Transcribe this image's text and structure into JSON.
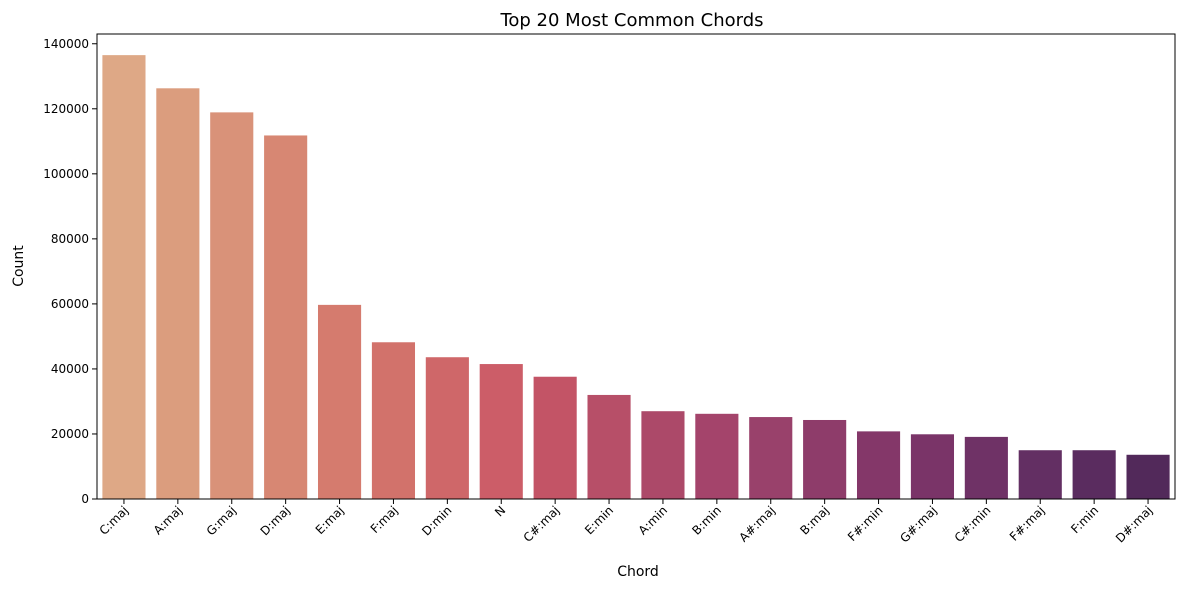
{
  "chart_data": {
    "type": "bar",
    "title": "Top 20 Most Common Chords",
    "xlabel": "Chord",
    "ylabel": "Count",
    "ylim": [
      0,
      143000
    ],
    "yticks": [
      0,
      20000,
      40000,
      60000,
      80000,
      100000,
      120000,
      140000
    ],
    "grid": false,
    "legend": "none",
    "categories": [
      "C:maj",
      "A:maj",
      "G:maj",
      "D:maj",
      "E:maj",
      "F:maj",
      "D:min",
      "N",
      "C#:maj",
      "E:min",
      "A:min",
      "B:min",
      "A#:maj",
      "B:maj",
      "F#:min",
      "G#:maj",
      "C#:min",
      "F#:maj",
      "F:min",
      "D#:maj"
    ],
    "values": [
      136500,
      126300,
      118900,
      111800,
      59700,
      48200,
      43600,
      41500,
      37600,
      32000,
      27000,
      26200,
      25200,
      24300,
      20800,
      19900,
      19100,
      15000,
      15000,
      13600
    ],
    "colors": [
      "#dea886",
      "#db9d7e",
      "#d99279",
      "#d78773",
      "#d57b6e",
      "#d2726b",
      "#cf6769",
      "#cc5d68",
      "#c35466",
      "#b74f68",
      "#ac4969",
      "#a4446b",
      "#99416b",
      "#8e3c6a",
      "#843769",
      "#7a3468",
      "#6f3266",
      "#632f63",
      "#5a2c5f",
      "#52295a"
    ]
  }
}
